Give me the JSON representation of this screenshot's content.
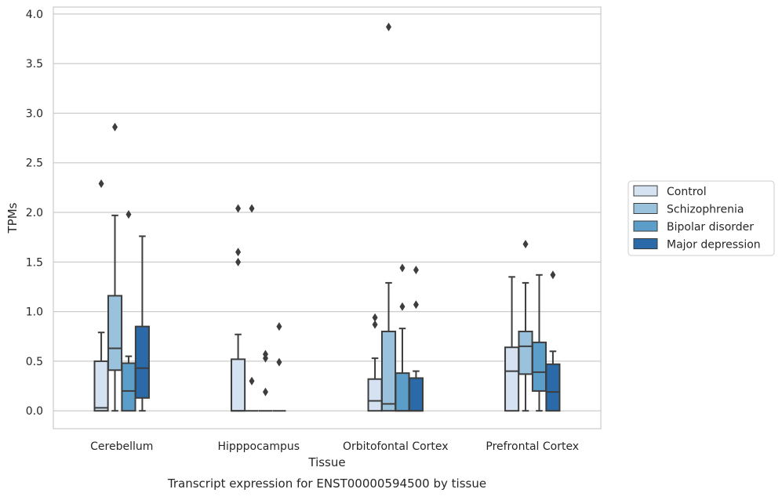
{
  "caption": "Transcript expression for ENST00000594500 by tissue",
  "chart_data": {
    "type": "boxplot",
    "xlabel": "Tissue",
    "ylabel": "TPMs",
    "ylim": [
      -0.18,
      4.07
    ],
    "yticks": [
      0.0,
      0.5,
      1.0,
      1.5,
      2.0,
      2.5,
      3.0,
      3.5,
      4.0
    ],
    "ytick_labels": [
      "0.0",
      "0.5",
      "1.0",
      "1.5",
      "2.0",
      "2.5",
      "3.0",
      "3.5",
      "4.0"
    ],
    "grid": "horizontal",
    "legend_position": "right",
    "categories": [
      "Cerebellum",
      "Hipppocampus",
      "Orbitofontal Cortex",
      "Prefrontal Cortex"
    ],
    "series": [
      {
        "name": "Control",
        "color": "#d4e2f2",
        "boxes": [
          {
            "whislo": 0.0,
            "q1": 0.0,
            "med": 0.03,
            "q3": 0.5,
            "whishi": 0.79,
            "fliers": [
              2.29
            ]
          },
          {
            "whislo": 0.0,
            "q1": 0.0,
            "med": 0.0,
            "q3": 0.52,
            "whishi": 0.77,
            "fliers": [
              1.6,
              1.5,
              2.04
            ]
          },
          {
            "whislo": 0.0,
            "q1": 0.0,
            "med": 0.1,
            "q3": 0.32,
            "whishi": 0.53,
            "fliers": [
              0.87,
              0.94
            ]
          },
          {
            "whislo": 0.0,
            "q1": 0.0,
            "med": 0.4,
            "q3": 0.64,
            "whishi": 1.35,
            "fliers": []
          }
        ]
      },
      {
        "name": "Schizophrenia",
        "color": "#9ac2dc",
        "boxes": [
          {
            "whislo": 0.0,
            "q1": 0.41,
            "med": 0.63,
            "q3": 1.16,
            "whishi": 1.97,
            "fliers": [
              2.86
            ]
          },
          {
            "whislo": 0.0,
            "q1": 0.0,
            "med": 0.0,
            "q3": 0.0,
            "whishi": 0.0,
            "fliers": [
              0.3,
              2.04
            ]
          },
          {
            "whislo": 0.0,
            "q1": 0.0,
            "med": 0.07,
            "q3": 0.8,
            "whishi": 1.29,
            "fliers": [
              3.87
            ]
          },
          {
            "whislo": 0.0,
            "q1": 0.37,
            "med": 0.65,
            "q3": 0.8,
            "whishi": 1.29,
            "fliers": [
              1.68
            ]
          }
        ]
      },
      {
        "name": "Bipolar disorder",
        "color": "#5b9ec9",
        "boxes": [
          {
            "whislo": 0.0,
            "q1": 0.0,
            "med": 0.2,
            "q3": 0.48,
            "whishi": 0.55,
            "fliers": [
              1.98
            ]
          },
          {
            "whislo": 0.0,
            "q1": 0.0,
            "med": 0.0,
            "q3": 0.0,
            "whishi": 0.0,
            "fliers": [
              0.19,
              0.53,
              0.57
            ]
          },
          {
            "whislo": 0.0,
            "q1": 0.0,
            "med": 0.0,
            "q3": 0.38,
            "whishi": 0.83,
            "fliers": [
              1.05,
              1.44
            ]
          },
          {
            "whislo": 0.0,
            "q1": 0.2,
            "med": 0.39,
            "q3": 0.69,
            "whishi": 1.37,
            "fliers": []
          }
        ]
      },
      {
        "name": "Major depression",
        "color": "#2a6aa8",
        "boxes": [
          {
            "whislo": 0.0,
            "q1": 0.13,
            "med": 0.43,
            "q3": 0.85,
            "whishi": 1.76,
            "fliers": []
          },
          {
            "whislo": 0.0,
            "q1": 0.0,
            "med": 0.0,
            "q3": 0.0,
            "whishi": 0.0,
            "fliers": [
              0.49,
              0.85
            ]
          },
          {
            "whislo": 0.0,
            "q1": 0.0,
            "med": 0.0,
            "q3": 0.33,
            "whishi": 0.4,
            "fliers": [
              1.07,
              1.42
            ]
          },
          {
            "whislo": 0.0,
            "q1": 0.0,
            "med": 0.19,
            "q3": 0.47,
            "whishi": 0.6,
            "fliers": [
              1.37
            ]
          }
        ]
      }
    ]
  }
}
